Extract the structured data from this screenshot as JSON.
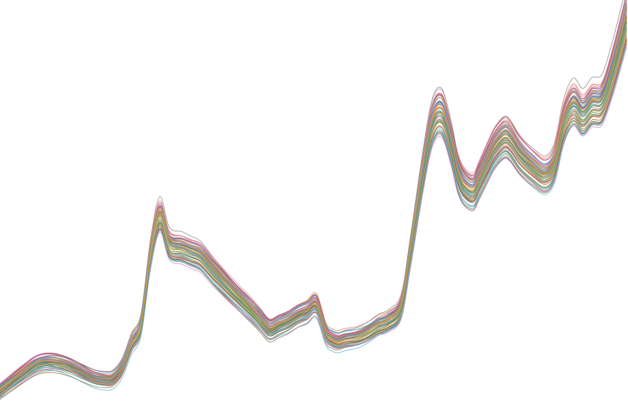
{
  "chart_data": {
    "type": "line",
    "title": "",
    "xlabel": "",
    "ylabel": "",
    "grid": false,
    "legend": "none",
    "axes_visible": false,
    "x": [
      0,
      0.035,
      0.06,
      0.085,
      0.11,
      0.13,
      0.15,
      0.165,
      0.18,
      0.195,
      0.21,
      0.225,
      0.24,
      0.255,
      0.27,
      0.29,
      0.305,
      0.32,
      0.34,
      0.36,
      0.38,
      0.4,
      0.415,
      0.43,
      0.445,
      0.46,
      0.475,
      0.49,
      0.505,
      0.52,
      0.53,
      0.54,
      0.55,
      0.57,
      0.585,
      0.595,
      0.605,
      0.62,
      0.64,
      0.655,
      0.675,
      0.69,
      0.705,
      0.72,
      0.73,
      0.74,
      0.755,
      0.765,
      0.78,
      0.79,
      0.805,
      0.815,
      0.83,
      0.85,
      0.87,
      0.885,
      0.9,
      0.915,
      0.93,
      0.945,
      0.96,
      0.975,
      0.99,
      1.0
    ],
    "mean_y": [
      0.04,
      0.08,
      0.105,
      0.11,
      0.1,
      0.085,
      0.07,
      0.065,
      0.067,
      0.095,
      0.155,
      0.2,
      0.37,
      0.47,
      0.4,
      0.39,
      0.38,
      0.37,
      0.335,
      0.302,
      0.27,
      0.24,
      0.215,
      0.19,
      0.2,
      0.21,
      0.225,
      0.235,
      0.25,
      0.18,
      0.165,
      0.16,
      0.165,
      0.17,
      0.18,
      0.19,
      0.2,
      0.21,
      0.245,
      0.38,
      0.58,
      0.7,
      0.725,
      0.65,
      0.58,
      0.545,
      0.53,
      0.56,
      0.61,
      0.64,
      0.665,
      0.655,
      0.62,
      0.59,
      0.57,
      0.6,
      0.7,
      0.745,
      0.72,
      0.745,
      0.75,
      0.815,
      0.9,
      0.96
    ],
    "series_count": 60,
    "spread": 0.05,
    "colors": [
      "#4c72b0",
      "#dd8452",
      "#55a868",
      "#c44e52",
      "#8172b3",
      "#937860",
      "#da8bc3",
      "#8c8c8c",
      "#ccb974",
      "#64b5cd",
      "#e6a23c",
      "#5b8c5a"
    ]
  }
}
